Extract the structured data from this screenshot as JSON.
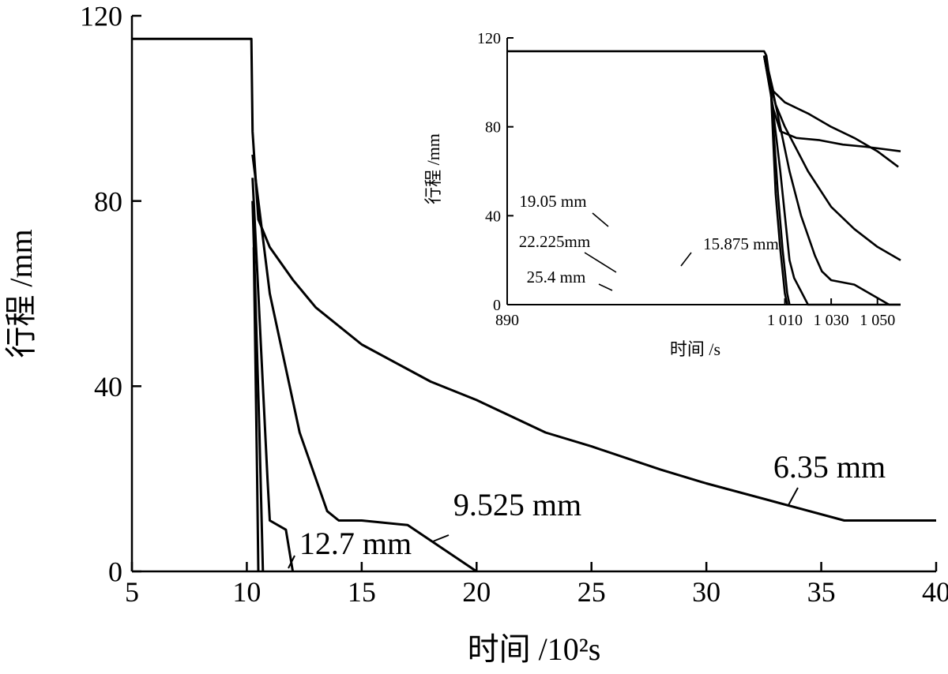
{
  "chart_data": [
    {
      "type": "line",
      "xlabel": "时间 /10²s",
      "ylabel": "行程 /mm",
      "xlim": [
        5,
        40
      ],
      "ylim": [
        0,
        120
      ],
      "xticks": [
        5,
        10,
        15,
        20,
        25,
        30,
        35,
        40
      ],
      "yticks": [
        0,
        40,
        80,
        120
      ],
      "xtick_labels": [
        "5",
        "10",
        "15",
        "20",
        "25",
        "30",
        "35",
        "40"
      ],
      "ytick_labels": [
        "0",
        "40",
        "80",
        "120"
      ],
      "grid": false,
      "series": [
        {
          "name": "6.35 mm",
          "x": [
            5,
            10.2,
            10.25,
            10.5,
            11,
            12,
            13,
            15,
            18,
            20,
            23,
            25,
            28,
            30,
            33,
            36,
            40
          ],
          "y": [
            115,
            115,
            95,
            76,
            70,
            63,
            57,
            49,
            41,
            37,
            30,
            27,
            22,
            19,
            15,
            11,
            11
          ]
        },
        {
          "name": "9.525 mm",
          "x": [
            10.25,
            10.5,
            11,
            12.3,
            13.5,
            14,
            15,
            17,
            20
          ],
          "y": [
            90,
            80,
            60,
            30,
            13,
            11,
            11,
            10,
            0
          ]
        },
        {
          "name": "12.7 mm",
          "x": [
            10.25,
            10.5,
            10.9,
            11,
            11.7,
            12
          ],
          "y": [
            85,
            60,
            20,
            11,
            9,
            0
          ]
        },
        {
          "name": "",
          "x": [
            10.25,
            10.55,
            10.7
          ],
          "y": [
            80,
            30,
            0
          ]
        },
        {
          "name": "",
          "x": [
            10.3,
            10.45,
            10.5
          ],
          "y": [
            70,
            20,
            0
          ]
        }
      ],
      "annotations": [
        "6.35 mm",
        "9.525 mm",
        "12.7 mm"
      ]
    },
    {
      "type": "line",
      "xlabel": "时间 /s",
      "ylabel": "行程 /mm",
      "xlim": [
        890,
        1060
      ],
      "ylim": [
        0,
        120
      ],
      "xticks": [
        890,
        1010,
        1030,
        1050
      ],
      "yticks": [
        0,
        40,
        80,
        120
      ],
      "xtick_labels": [
        "890",
        "1 010",
        "1 030",
        "1 050"
      ],
      "ytick_labels": [
        "0",
        "40",
        "80",
        "120"
      ],
      "grid": false,
      "series": [
        {
          "name": "",
          "x": [
            890,
            1001,
            1002,
            1003,
            1005,
            1010,
            1020,
            1030,
            1040,
            1050,
            1059
          ],
          "y": [
            114,
            114,
            112,
            105,
            96,
            91,
            86,
            80,
            75,
            69,
            62
          ]
        },
        {
          "name": "",
          "x": [
            1001,
            1003,
            1005,
            1008,
            1015,
            1025,
            1035,
            1045,
            1060
          ],
          "y": [
            112,
            100,
            88,
            78,
            75,
            74,
            72,
            71,
            69
          ]
        },
        {
          "name": "",
          "x": [
            1001,
            1003,
            1006,
            1010,
            1020,
            1030,
            1040,
            1050,
            1060
          ],
          "y": [
            112,
            102,
            90,
            80,
            60,
            44,
            34,
            26,
            20
          ]
        },
        {
          "name": "15.875 mm",
          "x": [
            1001,
            1004,
            1007,
            1012,
            1017,
            1023,
            1026,
            1030,
            1040,
            1055,
            1060
          ],
          "y": [
            112,
            100,
            85,
            60,
            40,
            22,
            15,
            11,
            9,
            0,
            0
          ]
        },
        {
          "name": "19.05 mm",
          "x": [
            1001,
            1004,
            1008,
            1012,
            1014,
            1020,
            1060
          ],
          "y": [
            112,
            95,
            60,
            20,
            12,
            0,
            0
          ]
        },
        {
          "name": "22.225 mm",
          "x": [
            1001,
            1004,
            1007,
            1009,
            1011,
            1012
          ],
          "y": [
            112,
            95,
            50,
            25,
            5,
            0
          ]
        },
        {
          "name": "25.4 mm",
          "x": [
            1001,
            1004,
            1006,
            1008,
            1010,
            1011
          ],
          "y": [
            112,
            95,
            50,
            25,
            5,
            0
          ]
        }
      ],
      "annotations": [
        "19.05 mm",
        "22.225mm",
        "25.4 mm",
        "15.875 mm"
      ]
    }
  ]
}
